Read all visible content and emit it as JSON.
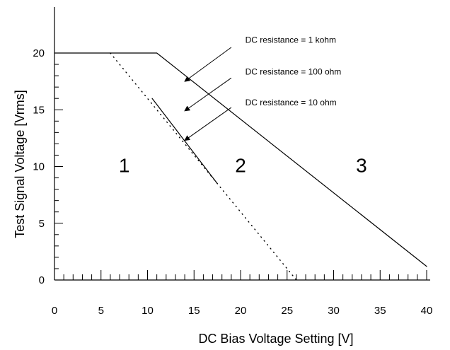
{
  "chart_data": {
    "type": "line",
    "title": "",
    "xlabel": "DC Bias Voltage Setting [V]",
    "ylabel": "Test Signal Voltage [Vrms]",
    "xlim": [
      0,
      40
    ],
    "ylim": [
      0,
      20
    ],
    "xticks": [
      0,
      5,
      10,
      15,
      20,
      25,
      30,
      35,
      40
    ],
    "yticks": [
      0,
      5,
      10,
      15,
      20
    ],
    "grid": false,
    "series": [
      {
        "name": "DC resistance = 1 kohm",
        "style": "solid",
        "points": [
          [
            0,
            20
          ],
          [
            11,
            20
          ],
          [
            40,
            1.2
          ]
        ]
      },
      {
        "name": "DC resistance = 100 ohm",
        "style": "dotted",
        "points": [
          [
            6,
            20
          ],
          [
            26,
            0
          ]
        ]
      },
      {
        "name": "DC resistance = 10 ohm",
        "style": "solid",
        "points": [
          [
            10.5,
            16
          ],
          [
            17.5,
            8.5
          ]
        ]
      }
    ],
    "annotations": [
      {
        "text": "DC resistance = 1 kohm",
        "text_pos": [
          20.5,
          20.9
        ],
        "arrow_from": [
          19,
          20.5
        ],
        "arrow_to": [
          14,
          17.5
        ]
      },
      {
        "text": "DC resistance = 100 ohm",
        "text_pos": [
          20.5,
          18.1
        ],
        "arrow_from": [
          19,
          17.8
        ],
        "arrow_to": [
          14,
          14.9
        ]
      },
      {
        "text": "DC resistance = 10 ohm",
        "text_pos": [
          20.5,
          15.4
        ],
        "arrow_from": [
          19,
          15.2
        ],
        "arrow_to": [
          14,
          12.3
        ]
      }
    ],
    "region_labels": [
      {
        "text": "1",
        "x": 7.5,
        "y": 9.5
      },
      {
        "text": "2",
        "x": 20,
        "y": 9.5
      },
      {
        "text": "3",
        "x": 33,
        "y": 9.5
      }
    ]
  }
}
